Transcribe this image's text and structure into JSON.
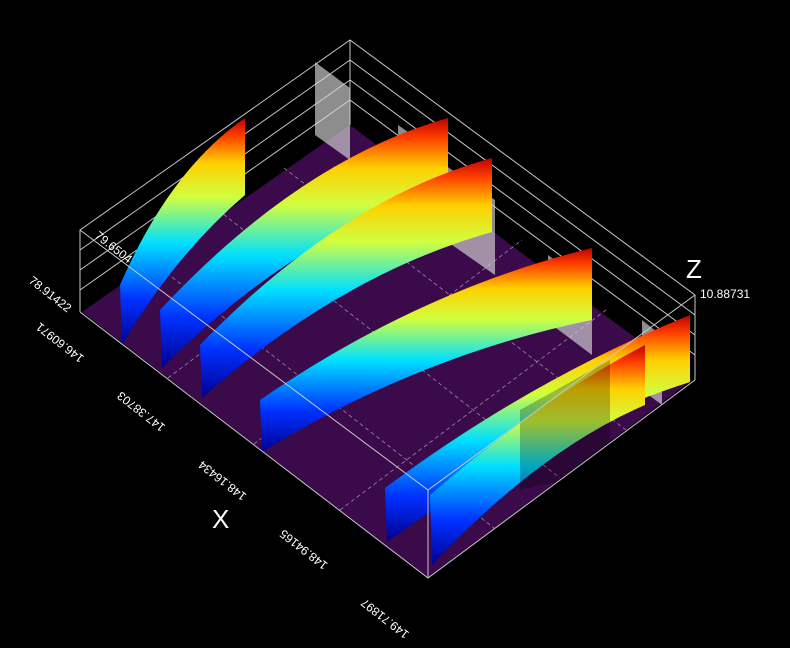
{
  "axes": {
    "x": {
      "label": "X",
      "ticks": [
        "146.60971",
        "147.38703",
        "148.16434",
        "148.94165",
        "149.71897"
      ]
    },
    "y": {
      "ticks": [
        "78.91422",
        "79.6504"
      ]
    },
    "z": {
      "label": "Z",
      "max": "10.88731"
    }
  }
}
